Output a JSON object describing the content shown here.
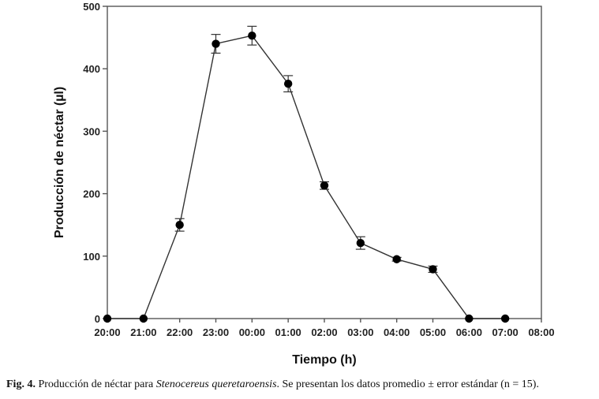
{
  "chart_data": {
    "type": "line",
    "xlabel": "Tiempo (h)",
    "ylabel": "Producción de néctar (µl)",
    "ylim": [
      0,
      500
    ],
    "yticks": [
      0,
      100,
      200,
      300,
      400,
      500
    ],
    "xtick_labels": [
      "20:00",
      "21:00",
      "22:00",
      "23:00",
      "00:00",
      "01:00",
      "02:00",
      "03:00",
      "04:00",
      "05:00",
      "06:00",
      "07:00",
      "08:00"
    ],
    "grid": false,
    "series": [
      {
        "x": [
          "20:00",
          "21:00",
          "22:00",
          "23:00",
          "00:00",
          "01:00",
          "02:00",
          "03:00",
          "04:00",
          "05:00",
          "06:00",
          "07:00"
        ],
        "values": [
          0,
          0,
          150,
          440,
          453,
          376,
          213,
          121,
          95,
          79,
          0,
          0
        ],
        "error": [
          0,
          0,
          10,
          15,
          15,
          13,
          6,
          10,
          3,
          5,
          0,
          0
        ],
        "color": "#000000"
      }
    ]
  },
  "caption": {
    "label": "Fig. 4.",
    "text_before": " Producción de néctar para ",
    "species": "Stenocereus queretaroensis",
    "text_after": ". Se presentan los datos promedio ± error estándar (n = 15)."
  }
}
